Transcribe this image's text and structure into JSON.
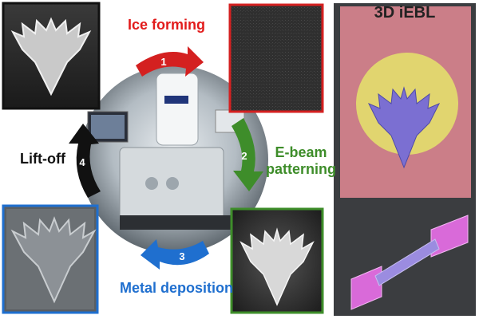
{
  "steps": [
    {
      "number": "1",
      "label": "Ice forming",
      "color": "#e21b1b"
    },
    {
      "number": "2",
      "label_line1": "E-beam",
      "label_line2": "patterning",
      "color": "#3e8d2a"
    },
    {
      "number": "3",
      "label": "Metal deposition",
      "color": "#1f6fcf"
    },
    {
      "number": "4",
      "label": "Lift-off",
      "color": "#111111"
    }
  ],
  "right_panel": {
    "title": "3D iEBL"
  },
  "colors": {
    "panel_red": "#d42020",
    "panel_green": "#3e8d2a",
    "panel_blue": "#1f6fcf",
    "pink_overlay": "#e58a95",
    "yellow_overlay": "#e3df6d",
    "purple_overlay": "#7b6fd2",
    "magenta_pad": "#d96ad9"
  },
  "icons": [
    "phoenix-sem-image",
    "instrument-photo",
    "nanostructure-bridge"
  ]
}
